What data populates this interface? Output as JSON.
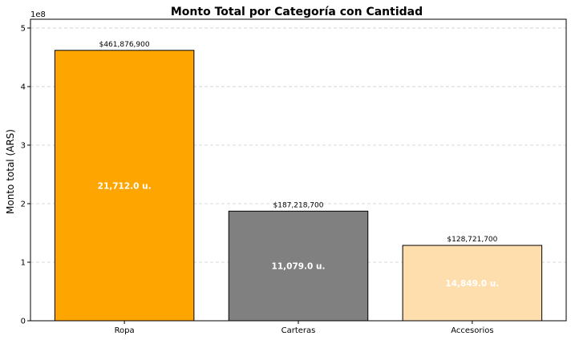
{
  "chart_data": {
    "type": "bar",
    "title": "Monto Total por Categoría con Cantidad",
    "ylabel": "Monto total (ARS)",
    "xlabel": "",
    "y_scale_label": "1e8",
    "y_ticks": [
      0,
      1,
      2,
      3,
      4,
      5
    ],
    "ylim": [
      0,
      5.15
    ],
    "y_unit_multiplier": 100000000,
    "grid": "horizontal-dashed",
    "categories": [
      "Ropa",
      "Carteras",
      "Accesorios"
    ],
    "values": [
      461876900,
      187218700,
      128721700
    ],
    "value_labels": [
      "$461,876,900",
      "$187,218,700",
      "$128,721,700"
    ],
    "quantity_labels": [
      "21,712.0 u.",
      "11,079.0 u.",
      "14,849.0 u."
    ],
    "colors": [
      "#FFA500",
      "#808080",
      "#FFDEAD"
    ]
  }
}
